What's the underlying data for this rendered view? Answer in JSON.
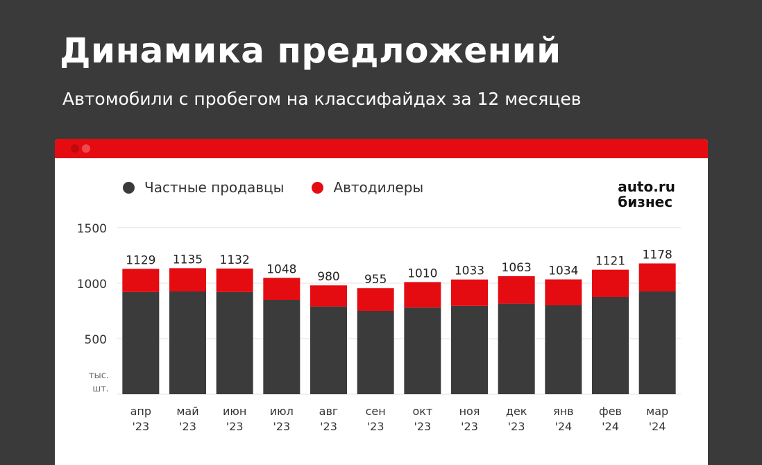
{
  "title": "Динамика предложений",
  "subtitle": "Автомобили с пробегом на классифайдах за 12 месяцев",
  "colors": {
    "background": "#3a3a3a",
    "accent": "#e40c11",
    "private": "#3b3b3b",
    "dealers": "#e40c11"
  },
  "window": {
    "dots": [
      "#e40c11",
      "#c0090d",
      "#f0484c"
    ]
  },
  "logo": {
    "line1": "auto.ru",
    "line2": "бизнес"
  },
  "legend": {
    "private": "Частные продавцы",
    "dealers": "Автодилеры"
  },
  "chart_data": {
    "type": "bar",
    "stacked": true,
    "title": "Динамика предложений",
    "subtitle": "Автомобили с пробегом на классифайдах за 12 месяцев",
    "ylabel_line1": "тыс.",
    "ylabel_line2": "шт.",
    "ylim": [
      0,
      1500
    ],
    "yticks": [
      500,
      1000,
      1500
    ],
    "categories": [
      [
        "апр",
        "'23"
      ],
      [
        "май",
        "'23"
      ],
      [
        "июн",
        "'23"
      ],
      [
        "июл",
        "'23"
      ],
      [
        "авг",
        "'23"
      ],
      [
        "сен",
        "'23"
      ],
      [
        "окт",
        "'23"
      ],
      [
        "ноя",
        "'23"
      ],
      [
        "дек",
        "'23"
      ],
      [
        "янв",
        "'24"
      ],
      [
        "фев",
        "'24"
      ],
      [
        "мар",
        "'24"
      ]
    ],
    "series": [
      {
        "name": "Частные продавцы",
        "color": "#3b3b3b",
        "values": [
          920,
          925,
          920,
          850,
          790,
          750,
          780,
          795,
          815,
          800,
          875,
          925
        ]
      },
      {
        "name": "Автодилеры",
        "color": "#e40c11",
        "values": [
          209,
          210,
          212,
          198,
          190,
          205,
          230,
          238,
          248,
          234,
          246,
          253
        ]
      }
    ],
    "totals": [
      1129,
      1135,
      1132,
      1048,
      980,
      955,
      1010,
      1033,
      1063,
      1034,
      1121,
      1178
    ]
  }
}
